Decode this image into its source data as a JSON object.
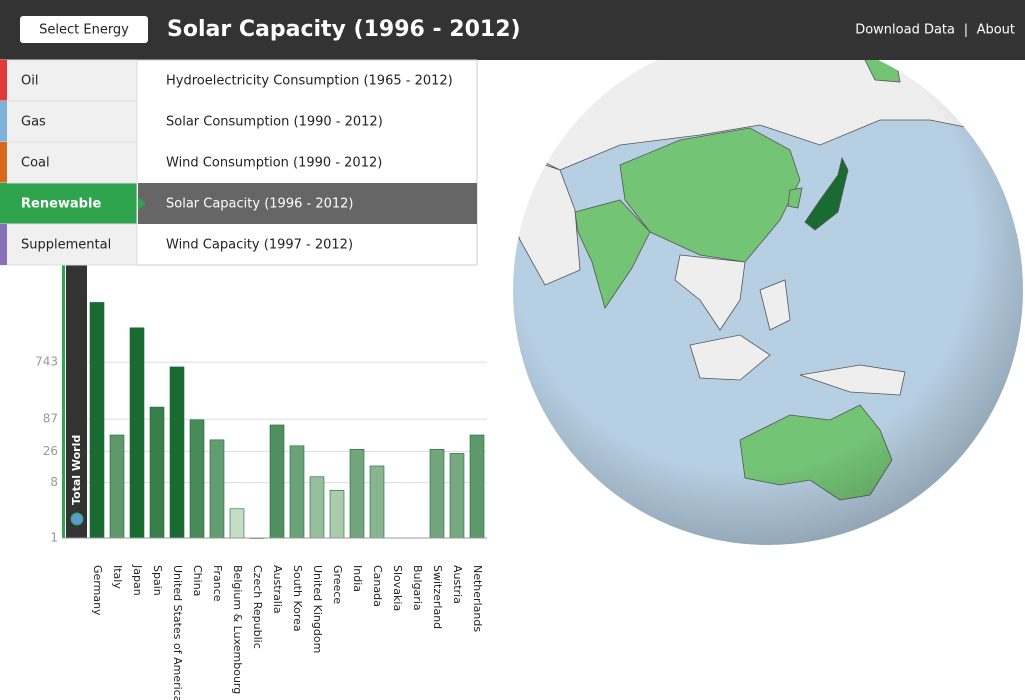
{
  "header": {
    "button": "Select Energy",
    "title": "Solar Capacity (1996 - 2012)",
    "links": [
      "Download Data",
      "About"
    ],
    "separator": "|"
  },
  "menu": {
    "energies": [
      "Oil",
      "Gas",
      "Coal",
      "Renewable",
      "Supplemental"
    ],
    "items": [
      "Hydroelectricity Consumption (1965 - 2012)",
      "Solar Consumption (1990 - 2012)",
      "Wind Consumption (1990 - 2012)",
      "Solar Capacity (1996 - 2012)",
      "Wind Capacity (1997 - 2012)"
    ]
  },
  "chart_data": {
    "type": "bar",
    "log_scale": true,
    "grid": true,
    "total_label": "Total World",
    "total_value": 32000,
    "categories": [
      "Germany",
      "Italy",
      "Japan",
      "Spain",
      "United States of America",
      "China",
      "France",
      "Belgium & Luxembourg",
      "Czech Republic",
      "Australia",
      "South Korea",
      "United Kingdom",
      "Greece",
      "India",
      "Canada",
      "Slovakia",
      "Bulgaria",
      "Switzerland",
      "Austria",
      "Netherlands"
    ],
    "values": [
      7000,
      48,
      2700,
      137,
      620,
      85,
      40,
      3,
      1,
      70,
      32,
      10,
      6,
      28,
      15,
      null,
      null,
      28,
      24,
      48
    ],
    "ylim": [
      1,
      32000
    ],
    "yticks": [
      1,
      8,
      26,
      87,
      743
    ]
  }
}
